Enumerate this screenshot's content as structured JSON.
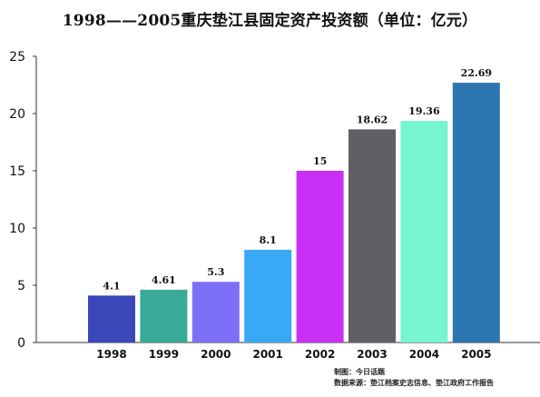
{
  "chart_data": {
    "type": "bar",
    "title": "1998——2005重庆垫江县固定资产投资额（单位：亿元）",
    "xlabel": "",
    "ylabel": "",
    "categories": [
      "1998",
      "1999",
      "2000",
      "2001",
      "2002",
      "2003",
      "2004",
      "2005"
    ],
    "values": [
      4.1,
      4.61,
      5.3,
      8.1,
      15,
      18.62,
      19.36,
      22.69
    ],
    "value_labels": [
      "4.1",
      "4.61",
      "5.3",
      "8.1",
      "15",
      "18.62",
      "19.36",
      "22.69"
    ],
    "bar_colors": [
      "#3b47b8",
      "#3aaa98",
      "#7b70f6",
      "#3aa9f5",
      "#c930f6",
      "#606064",
      "#75f5d0",
      "#2c77b0"
    ],
    "yticks": [
      "0",
      "5",
      "10",
      "15",
      "20",
      "25"
    ],
    "ylim": [
      0,
      25
    ],
    "grid": false,
    "legend": "none"
  },
  "credits": {
    "made": "制图：今日话题",
    "source": "数据来源：垫江档案史志信息、垫江政府工作报告"
  }
}
